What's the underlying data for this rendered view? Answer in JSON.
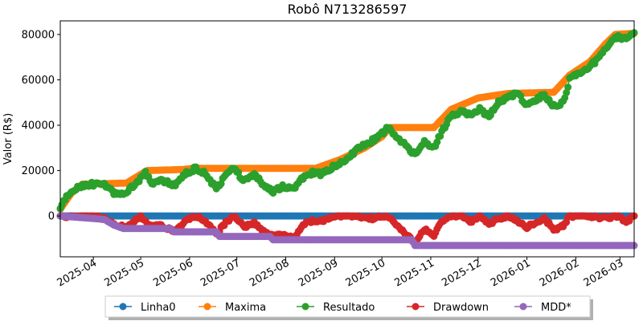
{
  "chart_data": {
    "type": "line",
    "title": "Robô N713286597",
    "xlabel": "",
    "ylabel": "Valor (R$)",
    "xlim": [
      "2025-03-11",
      "2026-03-10"
    ],
    "ylim": [
      -18000,
      86000
    ],
    "y_ticks": [
      0,
      20000,
      40000,
      60000,
      80000
    ],
    "x_ticks": [
      "2025-04",
      "2025-05",
      "2025-06",
      "2025-07",
      "2025-08",
      "2025-09",
      "2025-10",
      "2025-11",
      "2025-12",
      "2026-01",
      "2026-02",
      "2026-03"
    ],
    "grid": false,
    "legend_position": "bottom-center",
    "series": [
      {
        "name": "Linha0",
        "color": "#1f77b4",
        "points": [
          [
            "2025-03-11",
            0
          ],
          [
            "2026-03-10",
            0
          ]
        ]
      },
      {
        "name": "Maxima",
        "color": "#ff7f0e",
        "points": [
          [
            "2025-03-11",
            3000
          ],
          [
            "2025-03-18",
            10000
          ],
          [
            "2025-03-25",
            14000
          ],
          [
            "2025-04-22",
            14500
          ],
          [
            "2025-05-05",
            20000
          ],
          [
            "2025-05-28",
            20500
          ],
          [
            "2025-06-03",
            21000
          ],
          [
            "2025-08-20",
            21000
          ],
          [
            "2025-09-05",
            25000
          ],
          [
            "2025-09-20",
            30000
          ],
          [
            "2025-10-01",
            35000
          ],
          [
            "2025-10-06",
            39000
          ],
          [
            "2025-11-03",
            39000
          ],
          [
            "2025-11-14",
            47000
          ],
          [
            "2025-12-01",
            52000
          ],
          [
            "2025-12-20",
            54000
          ],
          [
            "2026-01-18",
            54500
          ],
          [
            "2026-01-28",
            62000
          ],
          [
            "2026-02-10",
            68000
          ],
          [
            "2026-02-20",
            76000
          ],
          [
            "2026-02-26",
            80000
          ],
          [
            "2026-03-10",
            80500
          ]
        ]
      },
      {
        "name": "Resultado",
        "color": "#2ca02c",
        "points": [
          [
            "2025-03-11",
            3000
          ],
          [
            "2025-03-15",
            9000
          ],
          [
            "2025-03-22",
            13000
          ],
          [
            "2025-03-30",
            14000
          ],
          [
            "2025-04-08",
            13500
          ],
          [
            "2025-04-14",
            10000
          ],
          [
            "2025-04-20",
            9500
          ],
          [
            "2025-04-27",
            13500
          ],
          [
            "2025-05-04",
            19000
          ],
          [
            "2025-05-08",
            14000
          ],
          [
            "2025-05-14",
            16000
          ],
          [
            "2025-05-22",
            13500
          ],
          [
            "2025-05-30",
            19000
          ],
          [
            "2025-06-05",
            21000
          ],
          [
            "2025-06-12",
            18000
          ],
          [
            "2025-06-18",
            12000
          ],
          [
            "2025-06-24",
            18000
          ],
          [
            "2025-06-29",
            21000
          ],
          [
            "2025-07-05",
            16000
          ],
          [
            "2025-07-12",
            18000
          ],
          [
            "2025-07-18",
            14000
          ],
          [
            "2025-07-24",
            11000
          ],
          [
            "2025-07-30",
            13000
          ],
          [
            "2025-08-06",
            12000
          ],
          [
            "2025-08-12",
            17000
          ],
          [
            "2025-08-18",
            19000
          ],
          [
            "2025-08-24",
            18500
          ],
          [
            "2025-09-01",
            22000
          ],
          [
            "2025-09-08",
            25000
          ],
          [
            "2025-09-15",
            29000
          ],
          [
            "2025-09-22",
            32000
          ],
          [
            "2025-09-29",
            35000
          ],
          [
            "2025-10-05",
            39000
          ],
          [
            "2025-10-10",
            35000
          ],
          [
            "2025-10-16",
            31000
          ],
          [
            "2025-10-22",
            27000
          ],
          [
            "2025-10-28",
            33000
          ],
          [
            "2025-11-03",
            30000
          ],
          [
            "2025-11-08",
            37000
          ],
          [
            "2025-11-14",
            44000
          ],
          [
            "2025-11-20",
            46000
          ],
          [
            "2025-11-26",
            44500
          ],
          [
            "2025-12-02",
            47000
          ],
          [
            "2025-12-08",
            44000
          ],
          [
            "2025-12-14",
            50000
          ],
          [
            "2025-12-20",
            52000
          ],
          [
            "2025-12-26",
            54000
          ],
          [
            "2026-01-01",
            49000
          ],
          [
            "2026-01-06",
            51000
          ],
          [
            "2026-01-12",
            53500
          ],
          [
            "2026-01-18",
            48500
          ],
          [
            "2026-01-24",
            50000
          ],
          [
            "2026-01-28",
            60000
          ],
          [
            "2026-02-03",
            63000
          ],
          [
            "2026-02-10",
            66000
          ],
          [
            "2026-02-16",
            70000
          ],
          [
            "2026-02-22",
            76000
          ],
          [
            "2026-02-28",
            79000
          ],
          [
            "2026-03-05",
            78000
          ],
          [
            "2026-03-10",
            81000
          ]
        ]
      },
      {
        "name": "Drawdown",
        "color": "#d62728",
        "points": [
          [
            "2025-03-11",
            0
          ],
          [
            "2025-04-01",
            0
          ],
          [
            "2025-04-08",
            -1000
          ],
          [
            "2025-04-15",
            -4000
          ],
          [
            "2025-04-22",
            -5000
          ],
          [
            "2025-05-01",
            0
          ],
          [
            "2025-05-08",
            -5000
          ],
          [
            "2025-05-14",
            -4000
          ],
          [
            "2025-05-22",
            -7000
          ],
          [
            "2025-05-30",
            -2000
          ],
          [
            "2025-06-05",
            0
          ],
          [
            "2025-06-12",
            -3000
          ],
          [
            "2025-06-18",
            -8000
          ],
          [
            "2025-06-24",
            -3000
          ],
          [
            "2025-06-30",
            0
          ],
          [
            "2025-07-06",
            -5000
          ],
          [
            "2025-07-12",
            -3000
          ],
          [
            "2025-07-18",
            -7000
          ],
          [
            "2025-07-24",
            -9000
          ],
          [
            "2025-07-30",
            -8000
          ],
          [
            "2025-08-06",
            -9500
          ],
          [
            "2025-08-12",
            -4000
          ],
          [
            "2025-08-18",
            -2000
          ],
          [
            "2025-08-24",
            -2500
          ],
          [
            "2025-09-01",
            0
          ],
          [
            "2025-09-15",
            0
          ],
          [
            "2025-09-25",
            -1000
          ],
          [
            "2025-10-05",
            0
          ],
          [
            "2025-10-10",
            -4000
          ],
          [
            "2025-10-16",
            -8000
          ],
          [
            "2025-10-22",
            -12000
          ],
          [
            "2025-10-28",
            -6000
          ],
          [
            "2025-11-03",
            -9000
          ],
          [
            "2025-11-08",
            -2000
          ],
          [
            "2025-11-14",
            0
          ],
          [
            "2025-11-20",
            0
          ],
          [
            "2025-11-26",
            -2500
          ],
          [
            "2025-12-02",
            0
          ],
          [
            "2025-12-08",
            -3500
          ],
          [
            "2025-12-14",
            -1000
          ],
          [
            "2025-12-20",
            0
          ],
          [
            "2026-01-01",
            -5000
          ],
          [
            "2026-01-06",
            -3000
          ],
          [
            "2026-01-12",
            -1000
          ],
          [
            "2026-01-18",
            -6000
          ],
          [
            "2026-01-24",
            -4500
          ],
          [
            "2026-01-28",
            0
          ],
          [
            "2026-02-10",
            0
          ],
          [
            "2026-02-20",
            -1000
          ],
          [
            "2026-02-28",
            0
          ],
          [
            "2026-03-05",
            -2500
          ],
          [
            "2026-03-10",
            0
          ]
        ]
      },
      {
        "name": "MDD*",
        "color": "#9467bd",
        "points": [
          [
            "2025-03-11",
            0
          ],
          [
            "2025-04-08",
            -1500
          ],
          [
            "2025-04-14",
            -4000
          ],
          [
            "2025-04-20",
            -5500
          ],
          [
            "2025-05-20",
            -5500
          ],
          [
            "2025-05-22",
            -7000
          ],
          [
            "2025-06-18",
            -7000
          ],
          [
            "2025-06-20",
            -9000
          ],
          [
            "2025-07-22",
            -9000
          ],
          [
            "2025-07-24",
            -10500
          ],
          [
            "2025-10-20",
            -10500
          ],
          [
            "2025-10-22",
            -13000
          ],
          [
            "2026-03-10",
            -13000
          ]
        ]
      }
    ]
  }
}
